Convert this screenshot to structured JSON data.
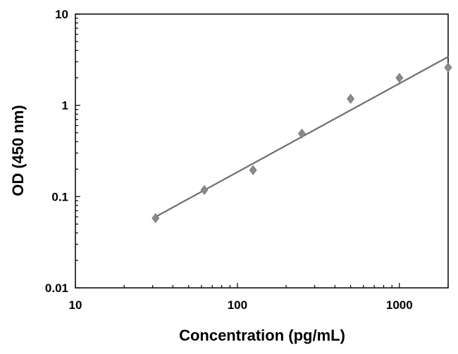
{
  "chart_data": {
    "type": "scatter",
    "xlabel": "Concentration (pg/mL)",
    "ylabel": "OD (450 nm)",
    "x_scale": "log",
    "y_scale": "log",
    "xlim": [
      10,
      2000
    ],
    "ylim": [
      0.01,
      10
    ],
    "x_ticks": [
      {
        "value": 10,
        "label": "10"
      },
      {
        "value": 100,
        "label": "100"
      },
      {
        "value": 1000,
        "label": "1000"
      }
    ],
    "y_ticks": [
      {
        "value": 0.01,
        "label": "0.01"
      },
      {
        "value": 0.1,
        "label": "0.1"
      },
      {
        "value": 1,
        "label": "1"
      },
      {
        "value": 10,
        "label": "10"
      }
    ],
    "grid": false,
    "marker": "diamond",
    "marker_color": "#8a8a8a",
    "line_color": "#6e6e6e",
    "points": [
      {
        "x": 31.25,
        "y": 0.058
      },
      {
        "x": 62.5,
        "y": 0.118
      },
      {
        "x": 125,
        "y": 0.195
      },
      {
        "x": 250,
        "y": 0.49
      },
      {
        "x": 500,
        "y": 1.18
      },
      {
        "x": 1000,
        "y": 2.0
      },
      {
        "x": 2000,
        "y": 2.6
      }
    ],
    "fit_line": {
      "x": [
        31.25,
        2000
      ],
      "y": [
        0.06,
        3.4
      ]
    }
  }
}
